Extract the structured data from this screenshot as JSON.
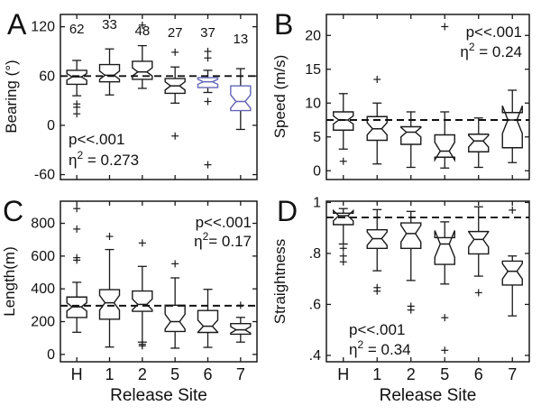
{
  "figure": {
    "background": "#ffffff",
    "xlabel": "Release Site",
    "categories": [
      "H",
      "1",
      "2",
      "5",
      "6",
      "7"
    ],
    "colors": {
      "default_box": "#1a1a1a",
      "highlight_box": "#6565b8",
      "dashed_line": "#111111",
      "axis": "#1a1a1a",
      "outlier": "#1a1a1a"
    }
  },
  "chart_data": [
    {
      "type": "boxplot",
      "panel_label": "A",
      "ylabel": "Bearing (°)",
      "ylim": [
        -66,
        135
      ],
      "ytick_labels": [
        "120",
        "60",
        "0",
        "-60"
      ],
      "ytick_values": [
        120,
        60,
        0,
        -60
      ],
      "dashed_value": 60,
      "annotation_lines": [
        "p<<.001",
        "η² = 0.273"
      ],
      "annotation_anchor": "bottom-left",
      "counts": [
        "62",
        "33",
        "48",
        "27",
        "37",
        "13"
      ],
      "categories": [
        "H",
        "1",
        "2",
        "5",
        "6",
        "7"
      ],
      "boxes": [
        {
          "category": "H",
          "whisker_lo": 36,
          "q1": 50,
          "median": 59,
          "q3": 67,
          "whisker_hi": 79,
          "notch_lo": 55,
          "notch_hi": 63,
          "outliers": [
            26,
            22,
            14
          ],
          "color": "default"
        },
        {
          "category": "1",
          "whisker_lo": 37,
          "q1": 53,
          "median": 61,
          "q3": 74,
          "whisker_hi": 93,
          "notch_lo": 56,
          "notch_hi": 66,
          "outliers": [],
          "color": "default"
        },
        {
          "category": "2",
          "whisker_lo": 45,
          "q1": 56,
          "median": 65,
          "q3": 78,
          "whisker_hi": 97,
          "notch_lo": 60,
          "notch_hi": 70,
          "outliers": [
            122
          ],
          "color": "default"
        },
        {
          "category": "5",
          "whisker_lo": 27,
          "q1": 39,
          "median": 48,
          "q3": 57,
          "whisker_hi": 71,
          "notch_lo": 43,
          "notch_hi": 53,
          "outliers": [
            89,
            -13
          ],
          "color": "default"
        },
        {
          "category": "6",
          "whisker_lo": 40,
          "q1": 46,
          "median": 53,
          "q3": 58,
          "whisker_hi": 67,
          "notch_lo": 50,
          "notch_hi": 56,
          "outliers": [
            90,
            82,
            29,
            -48
          ],
          "color": "highlight"
        },
        {
          "category": "7",
          "whisker_lo": -5,
          "q1": 18,
          "median": 29,
          "q3": 48,
          "whisker_hi": 69,
          "notch_lo": 21,
          "notch_hi": 37,
          "outliers": [],
          "color": "highlight"
        }
      ]
    },
    {
      "type": "boxplot",
      "panel_label": "B",
      "ylabel": "Speed (m/s)",
      "ylim": [
        -1.3,
        23.1
      ],
      "ytick_labels": [
        "20",
        "15",
        "10",
        "5",
        "0"
      ],
      "ytick_values": [
        20,
        15,
        10,
        5,
        0
      ],
      "dashed_value": 7.5,
      "annotation_lines": [
        "p<<.001",
        "η²  = 0.24"
      ],
      "annotation_anchor": "top-right",
      "counts": null,
      "categories": [
        "H",
        "1",
        "2",
        "5",
        "6",
        "7"
      ],
      "boxes": [
        {
          "category": "H",
          "whisker_lo": 3.2,
          "q1": 6.0,
          "median": 7.5,
          "q3": 8.7,
          "whisker_hi": 11.4,
          "notch_lo": 6.9,
          "notch_hi": 8.1,
          "outliers": [
            1.4
          ],
          "color": "default"
        },
        {
          "category": "1",
          "whisker_lo": 1.0,
          "q1": 4.5,
          "median": 6.2,
          "q3": 8.0,
          "whisker_hi": 10.0,
          "notch_lo": 5.3,
          "notch_hi": 7.1,
          "outliers": [
            13.5
          ],
          "color": "default"
        },
        {
          "category": "2",
          "whisker_lo": 0.5,
          "q1": 3.9,
          "median": 5.7,
          "q3": 6.5,
          "whisker_hi": 8.7,
          "notch_lo": 5.0,
          "notch_hi": 6.4,
          "outliers": [],
          "color": "default"
        },
        {
          "category": "5",
          "whisker_lo": 0.4,
          "q1": 2.0,
          "median": 2.9,
          "q3": 5.3,
          "whisker_hi": 8.7,
          "notch_lo": 1.6,
          "notch_hi": 4.2,
          "outliers": [
            21.3
          ],
          "color": "default"
        },
        {
          "category": "6",
          "whisker_lo": 0.5,
          "q1": 2.8,
          "median": 4.4,
          "q3": 5.4,
          "whisker_hi": 7.8,
          "notch_lo": 3.5,
          "notch_hi": 5.2,
          "outliers": [],
          "color": "default"
        },
        {
          "category": "7",
          "whisker_lo": 1.2,
          "q1": 3.4,
          "median": 7.5,
          "q3": 8.6,
          "whisker_hi": 11.9,
          "notch_lo": 5.5,
          "notch_hi": 9.6,
          "outliers": [],
          "color": "default"
        }
      ]
    },
    {
      "type": "boxplot",
      "panel_label": "C",
      "ylabel": "Length(m)",
      "ylim": [
        -45,
        935
      ],
      "ytick_labels": [
        "800",
        "600",
        "400",
        "200",
        "0"
      ],
      "ytick_values": [
        800,
        600,
        400,
        200,
        0
      ],
      "dashed_value": 297,
      "annotation_lines": [
        "p<<.001",
        "η²= 0.17"
      ],
      "annotation_anchor": "top-right",
      "counts": null,
      "categories": [
        "H",
        "1",
        "2",
        "5",
        "6",
        "7"
      ],
      "boxes": [
        {
          "category": "H",
          "whisker_lo": 135,
          "q1": 225,
          "median": 290,
          "q3": 350,
          "whisker_hi": 440,
          "notch_lo": 265,
          "notch_hi": 315,
          "outliers": [
            890,
            765,
            590,
            575
          ],
          "color": "default"
        },
        {
          "category": "1",
          "whisker_lo": 45,
          "q1": 215,
          "median": 315,
          "q3": 395,
          "whisker_hi": 640,
          "notch_lo": 270,
          "notch_hi": 360,
          "outliers": [
            720
          ],
          "color": "default"
        },
        {
          "category": "2",
          "whisker_lo": 75,
          "q1": 263,
          "median": 305,
          "q3": 387,
          "whisker_hi": 537,
          "notch_lo": 272,
          "notch_hi": 338,
          "outliers": [
            680,
            62,
            52
          ],
          "color": "default"
        },
        {
          "category": "5",
          "whisker_lo": 38,
          "q1": 140,
          "median": 200,
          "q3": 300,
          "whisker_hi": 467,
          "notch_lo": 155,
          "notch_hi": 245,
          "outliers": [
            553
          ],
          "color": "default"
        },
        {
          "category": "6",
          "whisker_lo": 43,
          "q1": 134,
          "median": 172,
          "q3": 268,
          "whisker_hi": 397,
          "notch_lo": 135,
          "notch_hi": 209,
          "outliers": [],
          "color": "default"
        },
        {
          "category": "7",
          "whisker_lo": 75,
          "q1": 123,
          "median": 150,
          "q3": 188,
          "whisker_hi": 226,
          "notch_lo": 130,
          "notch_hi": 170,
          "outliers": [
            300
          ],
          "color": "default"
        }
      ]
    },
    {
      "type": "boxplot",
      "panel_label": "D",
      "ylabel": "Straightness",
      "ylim": [
        0.375,
        1.005
      ],
      "ytick_labels": [
        "1",
        ".8",
        ".6",
        ".4"
      ],
      "ytick_values": [
        1,
        0.8,
        0.6,
        0.4
      ],
      "dashed_value": 0.941,
      "annotation_lines": [
        "p<<.001",
        "η² = 0.34"
      ],
      "annotation_anchor": "bottom-left",
      "counts": null,
      "categories": [
        "H",
        "1",
        "2",
        "5",
        "6",
        "7"
      ],
      "boxes": [
        {
          "category": "H",
          "whisker_lo": 0.837,
          "q1": 0.913,
          "median": 0.948,
          "q3": 0.958,
          "whisker_hi": 0.976,
          "notch_lo": 0.928,
          "notch_hi": 0.968,
          "outliers": [
            0.82,
            0.79,
            0.767
          ],
          "color": "default"
        },
        {
          "category": "1",
          "whisker_lo": 0.732,
          "q1": 0.82,
          "median": 0.858,
          "q3": 0.893,
          "whisker_hi": 0.972,
          "notch_lo": 0.832,
          "notch_hi": 0.884,
          "outliers": [
            0.666,
            0.652
          ],
          "color": "default"
        },
        {
          "category": "2",
          "whisker_lo": 0.694,
          "q1": 0.82,
          "median": 0.878,
          "q3": 0.92,
          "whisker_hi": 0.965,
          "notch_lo": 0.845,
          "notch_hi": 0.91,
          "outliers": [
            0.593,
            0.578
          ],
          "color": "default"
        },
        {
          "category": "5",
          "whisker_lo": 0.68,
          "q1": 0.757,
          "median": 0.837,
          "q3": 0.862,
          "whisker_hi": 0.924,
          "notch_lo": 0.785,
          "notch_hi": 0.89,
          "outliers": [
            0.548,
            0.42
          ],
          "color": "default"
        },
        {
          "category": "6",
          "whisker_lo": 0.711,
          "q1": 0.798,
          "median": 0.855,
          "q3": 0.886,
          "whisker_hi": 0.983,
          "notch_lo": 0.825,
          "notch_hi": 0.885,
          "outliers": [
            0.646
          ],
          "color": "default"
        },
        {
          "category": "7",
          "whisker_lo": 0.555,
          "q1": 0.676,
          "median": 0.73,
          "q3": 0.77,
          "whisker_hi": 0.79,
          "notch_lo": 0.7,
          "notch_hi": 0.76,
          "outliers": [
            0.97
          ],
          "color": "default"
        }
      ]
    }
  ]
}
